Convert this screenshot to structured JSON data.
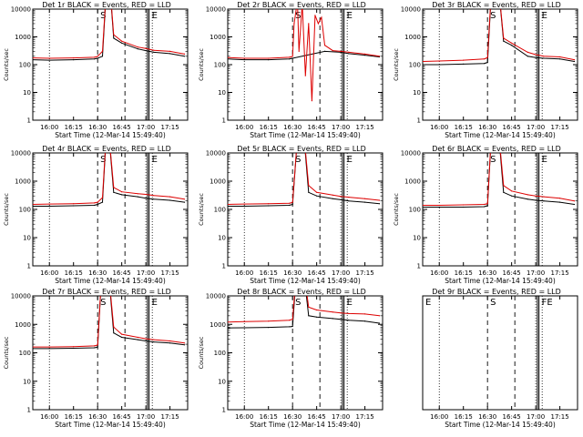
{
  "chart_data": [
    {
      "type": "line",
      "title": "Det 1r BLACK = Events, RED = LLD",
      "ylabel": "Counts/sec",
      "xlabel": "Start Time (12-Mar-14 15:49:40)",
      "yscale": "log",
      "ylim": [
        1,
        10000
      ],
      "yticks": [
        "1",
        "10",
        "100",
        "1000",
        "10000"
      ],
      "xlim": [
        "15:49:40",
        "17:26"
      ],
      "xticks": [
        "16:00",
        "16:15",
        "16:30",
        "16:45",
        "17:00",
        "17:15"
      ],
      "markers": [
        {
          "label": "S",
          "t": "16:30"
        },
        {
          "label": "E",
          "t": "17:02"
        }
      ],
      "series": [
        {
          "name": "Events",
          "color": "#000000",
          "x": [
            "15:49:40",
            "16:00",
            "16:15",
            "16:28",
            "16:29",
            "16:30",
            "16:33",
            "16:36",
            "16:37",
            "16:40",
            "16:45",
            "16:55",
            "17:00",
            "17:05",
            "17:15",
            "17:24"
          ],
          "values": [
            150,
            145,
            150,
            160,
            165,
            170,
            200,
            200000,
            200000,
            900,
            600,
            370,
            320,
            280,
            250,
            200
          ]
        },
        {
          "name": "LLD",
          "color": "#dd0000",
          "x": [
            "15:49:40",
            "16:00",
            "16:15",
            "16:28",
            "16:29",
            "16:30",
            "16:33",
            "16:36",
            "16:37",
            "16:40",
            "16:45",
            "16:55",
            "17:00",
            "17:05",
            "17:15",
            "17:24"
          ],
          "values": [
            175,
            170,
            175,
            185,
            190,
            200,
            300,
            200000,
            200000,
            1200,
            700,
            430,
            380,
            330,
            300,
            240
          ]
        }
      ]
    },
    {
      "type": "line",
      "title": "Det 2r BLACK = Events, RED = LLD",
      "ylabel": "Counts/sec",
      "xlabel": "Start Time (12-Mar-14 15:49:40)",
      "yscale": "log",
      "ylim": [
        1,
        10000
      ],
      "yticks": [
        "1",
        "10",
        "100",
        "1000",
        "10000"
      ],
      "xlim": [
        "15:49:40",
        "17:26"
      ],
      "xticks": [
        "16:00",
        "16:15",
        "16:30",
        "16:45",
        "17:00",
        "17:15"
      ],
      "markers": [
        {
          "label": "S",
          "t": "16:30"
        },
        {
          "label": "E",
          "t": "17:02"
        }
      ],
      "series": [
        {
          "name": "Events",
          "color": "#000000",
          "x": [
            "15:49:40",
            "16:00",
            "16:15",
            "16:28",
            "16:29",
            "16:30",
            "16:50",
            "17:00",
            "17:05",
            "17:15",
            "17:24"
          ],
          "values": [
            160,
            150,
            150,
            160,
            165,
            170,
            300,
            280,
            250,
            220,
            190
          ]
        },
        {
          "name": "LLD",
          "color": "#dd0000",
          "x": [
            "15:49:40",
            "16:00",
            "16:15",
            "16:28",
            "16:29",
            "16:30",
            "16:31",
            "16:33",
            "16:34",
            "16:36",
            "16:38",
            "16:40",
            "16:42",
            "16:44",
            "16:46",
            "16:48",
            "16:50",
            "16:55",
            "17:00",
            "17:05",
            "17:15",
            "17:24"
          ],
          "values": [
            180,
            170,
            170,
            185,
            190,
            200,
            3000,
            20000,
            300,
            15000,
            40,
            3000,
            5,
            6000,
            3000,
            5000,
            500,
            320,
            300,
            280,
            240,
            200
          ]
        }
      ]
    },
    {
      "type": "line",
      "title": "Det 3r BLACK = Events, RED = LLD",
      "ylabel": "Counts/sec",
      "xlabel": "Start Time (12-Mar-14 15:49:40)",
      "yscale": "log",
      "ylim": [
        1,
        10000
      ],
      "yticks": [
        "1",
        "10",
        "100",
        "1000",
        "10000"
      ],
      "xlim": [
        "15:49:40",
        "17:26"
      ],
      "xticks": [
        "16:00",
        "16:15",
        "16:30",
        "16:45",
        "17:00",
        "17:15"
      ],
      "markers": [
        {
          "label": "S",
          "t": "16:30"
        },
        {
          "label": "E",
          "t": "17:02"
        }
      ],
      "series": [
        {
          "name": "Events",
          "color": "#000000",
          "x": [
            "15:49:40",
            "16:00",
            "16:15",
            "16:28",
            "16:29",
            "16:30",
            "16:33",
            "16:36",
            "16:40",
            "16:45",
            "16:55",
            "17:00",
            "17:05",
            "17:15",
            "17:24"
          ],
          "values": [
            100,
            100,
            105,
            110,
            115,
            120,
            200000,
            200000,
            700,
            500,
            200,
            180,
            170,
            160,
            130
          ]
        },
        {
          "name": "LLD",
          "color": "#dd0000",
          "x": [
            "15:49:40",
            "16:00",
            "16:15",
            "16:28",
            "16:29",
            "16:30",
            "16:33",
            "16:36",
            "16:40",
            "16:45",
            "16:55",
            "17:00",
            "17:05",
            "17:15",
            "17:24"
          ],
          "values": [
            130,
            135,
            145,
            160,
            170,
            180,
            200000,
            200000,
            900,
            600,
            280,
            230,
            200,
            190,
            150
          ]
        }
      ]
    },
    {
      "type": "line",
      "title": "Det 4r BLACK = Events, RED = LLD",
      "ylabel": "Counts/sec",
      "xlabel": "Start Time (12-Mar-14 15:49:40)",
      "yscale": "log",
      "ylim": [
        1,
        10000
      ],
      "yticks": [
        "1",
        "10",
        "100",
        "1000",
        "10000"
      ],
      "xlim": [
        "15:49:40",
        "17:26"
      ],
      "xticks": [
        "16:00",
        "16:15",
        "16:30",
        "16:45",
        "17:00",
        "17:15"
      ],
      "markers": [
        {
          "label": "S",
          "t": "16:30"
        },
        {
          "label": "E",
          "t": "17:02"
        }
      ],
      "series": [
        {
          "name": "Events",
          "color": "#000000",
          "x": [
            "15:49:40",
            "16:00",
            "16:15",
            "16:28",
            "16:29",
            "16:30",
            "16:33",
            "16:36",
            "16:40",
            "16:45",
            "16:55",
            "17:00",
            "17:05",
            "17:15",
            "17:24"
          ],
          "values": [
            130,
            130,
            135,
            140,
            145,
            150,
            180,
            200000,
            400,
            330,
            280,
            250,
            230,
            210,
            180
          ]
        },
        {
          "name": "LLD",
          "color": "#dd0000",
          "x": [
            "15:49:40",
            "16:00",
            "16:15",
            "16:28",
            "16:29",
            "16:30",
            "16:33",
            "16:36",
            "16:40",
            "16:45",
            "16:55",
            "17:00",
            "17:05",
            "17:15",
            "17:24"
          ],
          "values": [
            150,
            155,
            160,
            170,
            175,
            180,
            260,
            200000,
            600,
            420,
            360,
            340,
            310,
            280,
            230
          ]
        }
      ]
    },
    {
      "type": "line",
      "title": "Det 5r BLACK = Events, RED = LLD",
      "ylabel": "Counts/sec",
      "xlabel": "Start Time (12-Mar-14 15:49:40)",
      "yscale": "log",
      "ylim": [
        1,
        10000
      ],
      "yticks": [
        "1",
        "10",
        "100",
        "1000",
        "10000"
      ],
      "xlim": [
        "15:49:40",
        "17:26"
      ],
      "xticks": [
        "16:00",
        "16:15",
        "16:30",
        "16:45",
        "17:00",
        "17:15"
      ],
      "markers": [
        {
          "label": "S",
          "t": "16:30"
        },
        {
          "label": "E",
          "t": "17:02"
        }
      ],
      "series": [
        {
          "name": "Events",
          "color": "#000000",
          "x": [
            "15:49:40",
            "16:00",
            "16:15",
            "16:28",
            "16:29",
            "16:30",
            "16:34",
            "16:36",
            "16:40",
            "16:45",
            "16:55",
            "17:00",
            "17:05",
            "17:15",
            "17:24"
          ],
          "values": [
            130,
            130,
            135,
            140,
            145,
            150,
            200000,
            200000,
            400,
            300,
            240,
            220,
            200,
            180,
            160
          ]
        },
        {
          "name": "LLD",
          "color": "#dd0000",
          "x": [
            "15:49:40",
            "16:00",
            "16:15",
            "16:28",
            "16:29",
            "16:30",
            "16:34",
            "16:36",
            "16:40",
            "16:45",
            "16:55",
            "17:00",
            "17:05",
            "17:15",
            "17:24"
          ],
          "values": [
            150,
            155,
            160,
            165,
            170,
            180,
            200000,
            200000,
            700,
            400,
            320,
            290,
            270,
            240,
            210
          ]
        }
      ]
    },
    {
      "type": "line",
      "title": "Det 6r BLACK = Events, RED = LLD",
      "ylabel": "Counts/sec",
      "xlabel": "Start Time (12-Mar-14 15:49:40)",
      "yscale": "log",
      "ylim": [
        1,
        10000
      ],
      "yticks": [
        "1",
        "10",
        "100",
        "1000",
        "10000"
      ],
      "xlim": [
        "15:49:40",
        "17:26"
      ],
      "xticks": [
        "16:00",
        "16:15",
        "16:30",
        "16:45",
        "17:00",
        "17:15"
      ],
      "markers": [
        {
          "label": "S",
          "t": "16:30"
        },
        {
          "label": "E",
          "t": "17:02"
        }
      ],
      "series": [
        {
          "name": "Events",
          "color": "#000000",
          "x": [
            "15:49:40",
            "16:00",
            "16:15",
            "16:28",
            "16:29",
            "16:30",
            "16:33",
            "16:36",
            "16:40",
            "16:45",
            "16:55",
            "17:00",
            "17:05",
            "17:15",
            "17:24"
          ],
          "values": [
            120,
            120,
            120,
            125,
            130,
            135,
            200000,
            200000,
            400,
            300,
            230,
            210,
            200,
            180,
            150
          ]
        },
        {
          "name": "LLD",
          "color": "#dd0000",
          "x": [
            "15:49:40",
            "16:00",
            "16:15",
            "16:28",
            "16:29",
            "16:30",
            "16:33",
            "16:36",
            "16:40",
            "16:45",
            "16:55",
            "17:00",
            "17:05",
            "17:15",
            "17:24"
          ],
          "values": [
            140,
            140,
            145,
            150,
            155,
            160,
            200000,
            200000,
            700,
            450,
            330,
            300,
            280,
            250,
            200
          ]
        }
      ]
    },
    {
      "type": "line",
      "title": "Det 7r BLACK = Events, RED = LLD",
      "ylabel": "Counts/sec",
      "xlabel": "Start Time (12-Mar-14 15:49:40)",
      "yscale": "log",
      "ylim": [
        1,
        10000
      ],
      "yticks": [
        "1",
        "10",
        "100",
        "1000",
        "10000"
      ],
      "xlim": [
        "15:49:40",
        "17:26"
      ],
      "xticks": [
        "16:00",
        "16:15",
        "16:30",
        "16:45",
        "17:00",
        "17:15"
      ],
      "markers": [
        {
          "label": "S",
          "t": "16:30"
        },
        {
          "label": "E",
          "t": "17:02"
        }
      ],
      "series": [
        {
          "name": "Events",
          "color": "#000000",
          "x": [
            "15:49:40",
            "16:00",
            "16:15",
            "16:28",
            "16:29",
            "16:30",
            "16:33",
            "16:36",
            "16:40",
            "16:45",
            "16:55",
            "17:00",
            "17:05",
            "17:15",
            "17:24"
          ],
          "values": [
            140,
            140,
            145,
            150,
            155,
            160,
            200000,
            200000,
            500,
            350,
            290,
            260,
            240,
            220,
            190
          ]
        },
        {
          "name": "LLD",
          "color": "#dd0000",
          "x": [
            "15:49:40",
            "16:00",
            "16:15",
            "16:28",
            "16:29",
            "16:30",
            "16:33",
            "16:36",
            "16:40",
            "16:45",
            "16:55",
            "17:00",
            "17:05",
            "17:15",
            "17:24"
          ],
          "values": [
            160,
            160,
            165,
            175,
            180,
            190,
            200000,
            200000,
            800,
            450,
            350,
            310,
            290,
            260,
            220
          ]
        }
      ]
    },
    {
      "type": "line",
      "title": "Det 8r BLACK = Events, RED = LLD",
      "ylabel": "Counts/sec",
      "xlabel": "Start Time (12-Mar-14 15:49:40)",
      "yscale": "log",
      "ylim": [
        1,
        10000
      ],
      "yticks": [
        "1",
        "10",
        "100",
        "1000",
        "10000"
      ],
      "xlim": [
        "15:49:40",
        "17:26"
      ],
      "xticks": [
        "16:00",
        "16:15",
        "16:30",
        "16:45",
        "17:00",
        "17:15"
      ],
      "markers": [
        {
          "label": "S",
          "t": "16:30"
        },
        {
          "label": "E",
          "t": "17:02"
        }
      ],
      "series": [
        {
          "name": "Events",
          "color": "#000000",
          "x": [
            "15:49:40",
            "16:00",
            "16:15",
            "16:28",
            "16:29",
            "16:30",
            "16:33",
            "16:36",
            "16:40",
            "16:45",
            "16:55",
            "17:00",
            "17:05",
            "17:15",
            "17:24"
          ],
          "values": [
            750,
            760,
            780,
            820,
            830,
            850,
            200000,
            200000,
            2000,
            1800,
            1600,
            1500,
            1400,
            1300,
            1100
          ]
        },
        {
          "name": "LLD",
          "color": "#dd0000",
          "x": [
            "15:49:40",
            "16:00",
            "16:15",
            "16:28",
            "16:29",
            "16:30",
            "16:33",
            "16:36",
            "16:40",
            "16:45",
            "16:55",
            "17:00",
            "17:05",
            "17:15",
            "17:24"
          ],
          "values": [
            1200,
            1250,
            1300,
            1400,
            1450,
            1500,
            200000,
            200000,
            4000,
            3200,
            2700,
            2500,
            2400,
            2300,
            2000
          ]
        }
      ]
    },
    {
      "type": "line",
      "title": "Det 9r BLACK = Events, RED = LLD",
      "ylabel": "",
      "xlabel": "Start Time (12-Mar-14 15:49:40)",
      "yscale": "log",
      "ylim": [
        1,
        10000
      ],
      "yticks": [],
      "xlim": [
        "15:49:40",
        "17:26"
      ],
      "xticks": [
        "16:00",
        "16:15",
        "16:30",
        "16:45",
        "17:00",
        "17:15"
      ],
      "markers": [
        {
          "label": "E",
          "t": "15:49:40"
        },
        {
          "label": "S",
          "t": "16:30"
        },
        {
          "label": "FE",
          "t": "17:02"
        }
      ],
      "series": []
    }
  ]
}
